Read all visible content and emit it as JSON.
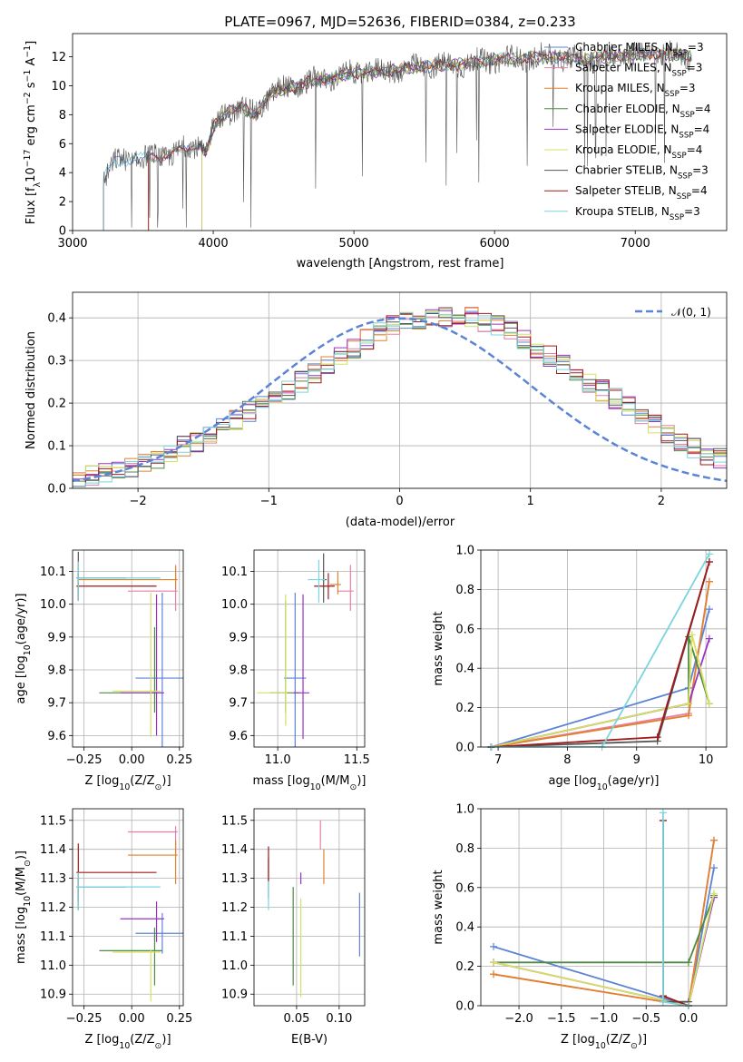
{
  "figure": {
    "title": "PLATE=0967, MJD=52636, FIBERID=0384, z=0.233"
  },
  "colors": {
    "c0": "#5b84d7",
    "c1": "#e87ea8",
    "c2": "#e0822e",
    "c3": "#4f8a44",
    "c4": "#9834c4",
    "c5": "#d6e062",
    "c6": "#555555",
    "c7": "#a01a1a",
    "c8": "#7bd5df"
  },
  "models": [
    "Chabrier MILES",
    "Salpeter MILES",
    "Kroupa MILES",
    "Chabrier ELODIE",
    "Salpeter ELODIE",
    "Kroupa ELODIE",
    "Chabrier STELIB",
    "Salpeter STELIB",
    "Kroupa STELIB"
  ],
  "chart_data": [
    {
      "type": "line",
      "xlabel": "wavelength [Angstrom, rest frame]",
      "ylabel_main": "Flux [f",
      "ylabel_sub": "λ",
      "ylabel_rest": "10",
      "ylabel_exp1": "−17",
      "ylabel_mid": " erg cm",
      "ylabel_exp2": "−2",
      "ylabel_mid2": " s",
      "ylabel_exp3": "−1",
      "ylabel_mid3": " A",
      "ylabel_exp4": "−1",
      "ylabel_end": "]",
      "xlim": [
        3000,
        7650
      ],
      "ylim": [
        0,
        13.6
      ],
      "xticks": [
        "3000",
        "4000",
        "5000",
        "6000",
        "7000"
      ],
      "xtick_vals": [
        3000,
        4000,
        5000,
        6000,
        7000
      ],
      "yticks": [
        "0",
        "2",
        "4",
        "6",
        "8",
        "10",
        "12"
      ],
      "ytick_vals": [
        0,
        2,
        4,
        6,
        8,
        10,
        12
      ],
      "legend_placement": "upper-right",
      "legend": [
        {
          "name": "Chabrier MILES",
          "nssp": "3"
        },
        {
          "name": "Salpeter MILES",
          "nssp": "3"
        },
        {
          "name": "Kroupa MILES",
          "nssp": "3"
        },
        {
          "name": "Chabrier ELODIE",
          "nssp": "4"
        },
        {
          "name": "Salpeter ELODIE",
          "nssp": "4"
        },
        {
          "name": "Kroupa ELODIE",
          "nssp": "4"
        },
        {
          "name": "Chabrier STELIB",
          "nssp": "3"
        },
        {
          "name": "Salpeter STELIB",
          "nssp": "4"
        },
        {
          "name": "Kroupa STELIB",
          "nssp": "3"
        }
      ],
      "legend_prefix": ", N",
      "legend_sub": "SSP",
      "continuum": {
        "wavelength": [
          3220,
          3300,
          3400,
          3500,
          3600,
          3700,
          3800,
          3900,
          3950,
          4000,
          4100,
          4200,
          4300,
          4400,
          4500,
          4600,
          4700,
          4800,
          4900,
          5000,
          5200,
          5400,
          5600,
          5800,
          6000,
          6200,
          6400,
          6600,
          6800,
          7000,
          7200,
          7400
        ],
        "flux": [
          3.6,
          4.7,
          4.9,
          5.0,
          5.1,
          5.3,
          5.6,
          6.0,
          5.3,
          7.2,
          8.2,
          8.5,
          8.0,
          9.4,
          9.8,
          10.0,
          10.3,
          10.5,
          10.6,
          10.9,
          11.0,
          11.2,
          11.4,
          11.5,
          11.8,
          11.9,
          12.0,
          11.8,
          12.0,
          12.2,
          12.2,
          12.0
        ]
      },
      "model_start_wavelength": [
        3220,
        3540,
        3540,
        3920,
        3920,
        3920,
        3220,
        3540,
        3220
      ]
    },
    {
      "type": "bar",
      "xlabel": "(data-model)/error",
      "ylabel": "Normed distribution",
      "xlim": [
        -2.5,
        2.5
      ],
      "ylim": [
        0,
        0.46
      ],
      "xticks": [
        "−2",
        "−1",
        "0",
        "1",
        "2"
      ],
      "xtick_vals": [
        -2,
        -1,
        0,
        1,
        2
      ],
      "yticks": [
        "0.0",
        "0.1",
        "0.2",
        "0.3",
        "0.4"
      ],
      "ytick_vals": [
        0,
        0.1,
        0.2,
        0.3,
        0.4
      ],
      "legend": "𝒩(0, 1)",
      "legend_placement": "upper-right",
      "bin_width": 0.1,
      "bin_start": -2.5,
      "base_histogram": [
        0.02,
        0.03,
        0.035,
        0.04,
        0.05,
        0.06,
        0.07,
        0.085,
        0.1,
        0.11,
        0.13,
        0.14,
        0.16,
        0.18,
        0.2,
        0.21,
        0.23,
        0.25,
        0.27,
        0.29,
        0.31,
        0.33,
        0.35,
        0.37,
        0.38,
        0.39,
        0.39,
        0.4,
        0.4,
        0.41,
        0.4,
        0.39,
        0.38,
        0.37,
        0.35,
        0.33,
        0.31,
        0.29,
        0.27,
        0.25,
        0.23,
        0.21,
        0.19,
        0.17,
        0.15,
        0.13,
        0.11,
        0.095,
        0.08,
        0.07
      ]
    },
    {
      "type": "scatter",
      "xlabel_main": "Z [log",
      "xlabel_sub": "10",
      "xlabel_rest": "(Z/Z",
      "xlabel_sub2": "⊙",
      "xlabel_end": ")]",
      "ylabel_main": "age  [log",
      "ylabel_sub": "10",
      "ylabel_rest": "(age/yr)]",
      "xlim": [
        -0.31,
        0.27
      ],
      "ylim": [
        9.565,
        10.165
      ],
      "xticks": [
        "−0.25",
        "0.00",
        "0.25"
      ],
      "xtick_vals": [
        -0.25,
        0,
        0.25
      ],
      "yticks": [
        "9.6",
        "9.7",
        "9.8",
        "9.9",
        "10.0",
        "10.1"
      ],
      "ytick_vals": [
        9.6,
        9.7,
        9.8,
        9.9,
        10.0,
        10.1
      ],
      "points": [
        {
          "x": 0.16,
          "xerr": [
            0.14,
            0.14
          ],
          "y": 9.775,
          "yerr": [
            0.26,
            0.26
          ]
        },
        {
          "x": 0.23,
          "xerr": [
            0.25,
            0.01
          ],
          "y": 10.04,
          "yerr": [
            0.06,
            0.08
          ]
        },
        {
          "x": 0.23,
          "xerr": [
            0.51,
            0.01
          ],
          "y": 10.075,
          "yerr": [
            0.03,
            0.04
          ]
        },
        {
          "x": 0.12,
          "xerr": [
            0.29,
            0.04
          ],
          "y": 9.73,
          "yerr": [
            0.06,
            0.2
          ]
        },
        {
          "x": 0.13,
          "xerr": [
            0.19,
            0.04
          ],
          "y": 9.73,
          "yerr": [
            0.13,
            0.3
          ]
        },
        {
          "x": 0.1,
          "xerr": [
            0.2,
            0.05
          ],
          "y": 9.735,
          "yerr": [
            0.14,
            0.3
          ]
        },
        {
          "x": -0.28,
          "xerr": [
            0.01,
            0.25
          ],
          "y": 10.08,
          "yerr": [
            0.07,
            0.08
          ]
        },
        {
          "x": -0.28,
          "xerr": [
            0.01,
            0.41
          ],
          "y": 10.055,
          "yerr": [
            0.04,
            0.04
          ]
        },
        {
          "x": -0.28,
          "xerr": [
            0.01,
            0.43
          ],
          "y": 10.08,
          "yerr": [
            0.07,
            0.05
          ]
        }
      ]
    },
    {
      "type": "scatter",
      "xlabel_main": "mass [log",
      "xlabel_sub": "10",
      "xlabel_rest": "(M/M",
      "xlabel_sub2": "⊙",
      "xlabel_end": ")]",
      "xlim": [
        10.85,
        11.55
      ],
      "ylim": [
        9.565,
        10.165
      ],
      "xticks": [
        "11.0",
        "11.5"
      ],
      "xtick_vals": [
        11.0,
        11.5
      ],
      "yticks": [
        "9.6",
        "9.7",
        "9.8",
        "9.9",
        "10.0",
        "10.1"
      ],
      "ytick_vals": [
        9.6,
        9.7,
        9.8,
        9.9,
        10.0,
        10.1
      ],
      "points": [
        {
          "x": 11.11,
          "xerr": [
            0.07,
            0.07
          ],
          "y": 9.775,
          "yerr": [
            0.26,
            0.26
          ]
        },
        {
          "x": 11.46,
          "xerr": [
            0.08,
            0.02
          ],
          "y": 10.04,
          "yerr": [
            0.06,
            0.08
          ]
        },
        {
          "x": 11.38,
          "xerr": [
            0.05,
            0.02
          ],
          "y": 10.06,
          "yerr": [
            0.03,
            0.04
          ]
        },
        {
          "x": 11.05,
          "xerr": [
            0.1,
            0.09
          ],
          "y": 9.73,
          "yerr": [
            0.06,
            0.28
          ]
        },
        {
          "x": 11.16,
          "xerr": [
            0.06,
            0.04
          ],
          "y": 9.73,
          "yerr": [
            0.14,
            0.3
          ]
        },
        {
          "x": 11.05,
          "xerr": [
            0.18,
            0.01
          ],
          "y": 9.73,
          "yerr": [
            0.1,
            0.3
          ]
        },
        {
          "x": 11.29,
          "xerr": [
            0.01,
            0.02
          ],
          "y": 10.075,
          "yerr": [
            0.07,
            0.08
          ]
        },
        {
          "x": 11.32,
          "xerr": [
            0.09,
            0.04
          ],
          "y": 10.055,
          "yerr": [
            0.04,
            0.04
          ]
        },
        {
          "x": 11.26,
          "xerr": [
            0.07,
            0.04
          ],
          "y": 10.075,
          "yerr": [
            0.07,
            0.06
          ]
        }
      ]
    },
    {
      "type": "line",
      "xlabel_main": "age  [log",
      "xlabel_sub": "10",
      "xlabel_rest": "(age/yr)]",
      "ylabel": "mass weight",
      "xlim": [
        6.75,
        10.3
      ],
      "ylim": [
        0,
        1.0
      ],
      "xticks": [
        "7",
        "8",
        "9",
        "10"
      ],
      "xtick_vals": [
        7,
        8,
        9,
        10
      ],
      "yticks": [
        "0.0",
        "0.2",
        "0.4",
        "0.6",
        "0.8",
        "1.0"
      ],
      "ytick_vals": [
        0,
        0.2,
        0.4,
        0.6,
        0.8,
        1.0
      ],
      "series": [
        {
          "x": [
            6.9,
            9.75,
            10.05
          ],
          "y": [
            0.0,
            0.3,
            0.7
          ]
        },
        {
          "x": [
            6.9,
            9.75,
            10.05
          ],
          "y": [
            0.0,
            0.17,
            0.84
          ]
        },
        {
          "x": [
            6.9,
            9.75,
            10.05
          ],
          "y": [
            0.0,
            0.16,
            0.84
          ]
        },
        {
          "x": [
            6.9,
            9.75,
            9.75,
            10.05
          ],
          "y": [
            0.0,
            0.22,
            0.56,
            0.22
          ]
        },
        {
          "x": [
            6.9,
            9.75,
            10.05
          ],
          "y": [
            0.0,
            0.22,
            0.55
          ]
        },
        {
          "x": [
            6.9,
            9.75,
            9.8,
            10.05
          ],
          "y": [
            0.0,
            0.22,
            0.57,
            0.22
          ]
        },
        {
          "x": [
            6.9,
            9.3,
            10.05
          ],
          "y": [
            0.0,
            0.03,
            0.94
          ]
        },
        {
          "x": [
            6.9,
            9.3,
            10.05
          ],
          "y": [
            0.0,
            0.05,
            0.94
          ]
        },
        {
          "x": [
            6.9,
            8.5,
            10.05
          ],
          "y": [
            0.0,
            0.0,
            0.98
          ]
        }
      ]
    },
    {
      "type": "scatter",
      "xlabel_main": "Z [log",
      "xlabel_sub": "10",
      "xlabel_rest": "(Z/Z",
      "xlabel_sub2": "⊙",
      "xlabel_end": ")]",
      "ylabel_main": "mass [log",
      "ylabel_sub": "10",
      "ylabel_rest": "(M/M",
      "ylabel_sub2": "⊙",
      "ylabel_end": ")]",
      "xlim": [
        -0.31,
        0.27
      ],
      "ylim": [
        10.86,
        11.54
      ],
      "xticks": [
        "−0.25",
        "0.00",
        "0.25"
      ],
      "xtick_vals": [
        -0.25,
        0,
        0.25
      ],
      "yticks": [
        "10.9",
        "11.0",
        "11.1",
        "11.2",
        "11.3",
        "11.4",
        "11.5"
      ],
      "ytick_vals": [
        10.9,
        11.0,
        11.1,
        11.2,
        11.3,
        11.4,
        11.5
      ],
      "points": [
        {
          "x": 0.16,
          "xerr": [
            0.14,
            0.14
          ],
          "y": 11.11,
          "yerr": [
            0.07,
            0.07
          ]
        },
        {
          "x": 0.23,
          "xerr": [
            0.25,
            0.01
          ],
          "y": 11.46,
          "yerr": [
            0.08,
            0.02
          ]
        },
        {
          "x": 0.23,
          "xerr": [
            0.25,
            0.01
          ],
          "y": 11.38,
          "yerr": [
            0.1,
            0.05
          ]
        },
        {
          "x": 0.12,
          "xerr": [
            0.29,
            0.04
          ],
          "y": 11.05,
          "yerr": [
            0.12,
            0.08
          ]
        },
        {
          "x": 0.13,
          "xerr": [
            0.19,
            0.04
          ],
          "y": 11.16,
          "yerr": [
            0.08,
            0.06
          ]
        },
        {
          "x": 0.1,
          "xerr": [
            0.2,
            0.05
          ],
          "y": 11.045,
          "yerr": [
            0.17,
            0.01
          ]
        },
        {
          "x": -0.28,
          "xerr": [
            0.01,
            0.25
          ],
          "y": 11.27,
          "yerr": [
            0.08,
            0.03
          ]
        },
        {
          "x": -0.28,
          "xerr": [
            0.01,
            0.41
          ],
          "y": 11.32,
          "yerr": [
            0.1,
            0.1
          ]
        },
        {
          "x": -0.28,
          "xerr": [
            0.01,
            0.43
          ],
          "y": 11.27,
          "yerr": [
            0.08,
            0.05
          ]
        }
      ]
    },
    {
      "type": "scatter",
      "xlabel": "E(B-V)",
      "xlim": [
        0.0,
        0.13
      ],
      "ylim": [
        10.86,
        11.54
      ],
      "xticks": [
        "0.05",
        "0.10"
      ],
      "xtick_vals": [
        0.05,
        0.1
      ],
      "yticks": [
        "10.9",
        "11.0",
        "11.1",
        "11.2",
        "11.3",
        "11.4",
        "11.5"
      ],
      "ytick_vals": [
        10.9,
        11.0,
        11.1,
        11.2,
        11.3,
        11.4,
        11.5
      ],
      "points": [
        {
          "x": 0.124,
          "y": 11.14,
          "yerr": [
            0.11,
            0.11
          ]
        },
        {
          "x": 0.078,
          "y": 11.45,
          "yerr": [
            0.05,
            0.05
          ]
        },
        {
          "x": 0.082,
          "y": 11.36,
          "yerr": [
            0.08,
            0.04
          ]
        },
        {
          "x": 0.046,
          "y": 11.1,
          "yerr": [
            0.17,
            0.17
          ]
        },
        {
          "x": 0.055,
          "y": 11.3,
          "yerr": [
            0.02,
            0.02
          ]
        },
        {
          "x": 0.055,
          "y": 11.06,
          "yerr": [
            0.17,
            0.17
          ]
        },
        {
          "x": 0.017,
          "y": 11.3,
          "yerr": [
            0.07,
            0.07
          ]
        },
        {
          "x": 0.017,
          "y": 11.35,
          "yerr": [
            0.06,
            0.06
          ]
        },
        {
          "x": 0.017,
          "y": 11.24,
          "yerr": [
            0.05,
            0.05
          ]
        }
      ]
    },
    {
      "type": "line",
      "xlabel_main": "Z [log",
      "xlabel_sub": "10",
      "xlabel_rest": "(Z/Z",
      "xlabel_sub2": "⊙",
      "xlabel_end": ")]",
      "ylabel": "mass weight",
      "xlim": [
        -2.45,
        0.45
      ],
      "ylim": [
        0,
        1.0
      ],
      "xticks": [
        "−2.0",
        "−1.5",
        "−1.0",
        "−0.5",
        "0.0"
      ],
      "xtick_vals": [
        -2,
        -1.5,
        -1,
        -0.5,
        0
      ],
      "yticks": [
        "0.0",
        "0.2",
        "0.4",
        "0.6",
        "0.8",
        "1.0"
      ],
      "ytick_vals": [
        0,
        0.2,
        0.4,
        0.6,
        0.8,
        1.0
      ],
      "series": [
        {
          "x": [
            -2.3,
            0.0,
            0.3
          ],
          "y": [
            0.3,
            0.0,
            0.7
          ]
        },
        {
          "x": [
            -2.3,
            0.0,
            0.3
          ],
          "y": [
            0.16,
            0.0,
            0.84
          ]
        },
        {
          "x": [
            -2.3,
            0.0,
            0.3
          ],
          "y": [
            0.16,
            0.0,
            0.84
          ]
        },
        {
          "x": [
            -2.3,
            0.0,
            0.3
          ],
          "y": [
            0.22,
            0.22,
            0.56
          ]
        },
        {
          "x": [
            -2.3,
            0.0,
            0.3
          ],
          "y": [
            0.22,
            0.0,
            0.55
          ]
        },
        {
          "x": [
            -2.3,
            0.0,
            0.3
          ],
          "y": [
            0.22,
            0.0,
            0.57
          ]
        },
        {
          "x": [
            -0.3,
            -0.3,
            0.0
          ],
          "y": [
            0.94,
            0.02,
            0.02
          ]
        },
        {
          "x": [
            -0.3,
            -0.3,
            0.0
          ],
          "y": [
            0.94,
            0.05,
            0.0
          ]
        },
        {
          "x": [
            -0.3,
            -0.3,
            0.0
          ],
          "y": [
            0.98,
            0.02,
            0.0
          ]
        }
      ]
    }
  ]
}
